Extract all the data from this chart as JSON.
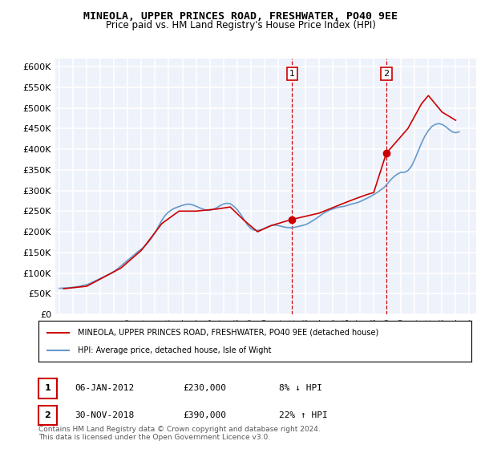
{
  "title": "MINEOLA, UPPER PRINCES ROAD, FRESHWATER, PO40 9EE",
  "subtitle": "Price paid vs. HM Land Registry's House Price Index (HPI)",
  "ylabel_ticks": [
    "£0",
    "£50K",
    "£100K",
    "£150K",
    "£200K",
    "£250K",
    "£300K",
    "£350K",
    "£400K",
    "£450K",
    "£500K",
    "£550K",
    "£600K"
  ],
  "ylim": [
    0,
    620000
  ],
  "xlim_start": 1995.0,
  "xlim_end": 2025.5,
  "background_color": "#e8eef8",
  "plot_bg": "#eef2fa",
  "grid_color": "#ffffff",
  "hpi_color": "#6699cc",
  "sale_color": "#cc0000",
  "marker1_x": 2012.03,
  "marker1_y": 230000,
  "marker2_x": 2018.92,
  "marker2_y": 390000,
  "legend_line1": "MINEOLA, UPPER PRINCES ROAD, FRESHWATER, PO40 9EE (detached house)",
  "legend_line2": "HPI: Average price, detached house, Isle of Wight",
  "annotation1_label": "1",
  "annotation1_date": "06-JAN-2012",
  "annotation1_price": "£230,000",
  "annotation1_pct": "8% ↓ HPI",
  "annotation2_label": "2",
  "annotation2_date": "30-NOV-2018",
  "annotation2_price": "£390,000",
  "annotation2_pct": "22% ↑ HPI",
  "footer": "Contains HM Land Registry data © Crown copyright and database right 2024.\nThis data is licensed under the Open Government Licence v3.0.",
  "hpi_data_x": [
    1995.0,
    1995.25,
    1995.5,
    1995.75,
    1996.0,
    1996.25,
    1996.5,
    1996.75,
    1997.0,
    1997.25,
    1997.5,
    1997.75,
    1998.0,
    1998.25,
    1998.5,
    1998.75,
    1999.0,
    1999.25,
    1999.5,
    1999.75,
    2000.0,
    2000.25,
    2000.5,
    2000.75,
    2001.0,
    2001.25,
    2001.5,
    2001.75,
    2002.0,
    2002.25,
    2002.5,
    2002.75,
    2003.0,
    2003.25,
    2003.5,
    2003.75,
    2004.0,
    2004.25,
    2004.5,
    2004.75,
    2005.0,
    2005.25,
    2005.5,
    2005.75,
    2006.0,
    2006.25,
    2006.5,
    2006.75,
    2007.0,
    2007.25,
    2007.5,
    2007.75,
    2008.0,
    2008.25,
    2008.5,
    2008.75,
    2009.0,
    2009.25,
    2009.5,
    2009.75,
    2010.0,
    2010.25,
    2010.5,
    2010.75,
    2011.0,
    2011.25,
    2011.5,
    2011.75,
    2012.0,
    2012.25,
    2012.5,
    2012.75,
    2013.0,
    2013.25,
    2013.5,
    2013.75,
    2014.0,
    2014.25,
    2014.5,
    2014.75,
    2015.0,
    2015.25,
    2015.5,
    2015.75,
    2016.0,
    2016.25,
    2016.5,
    2016.75,
    2017.0,
    2017.25,
    2017.5,
    2017.75,
    2018.0,
    2018.25,
    2018.5,
    2018.75,
    2019.0,
    2019.25,
    2019.5,
    2019.75,
    2020.0,
    2020.25,
    2020.5,
    2020.75,
    2021.0,
    2021.25,
    2021.5,
    2021.75,
    2022.0,
    2022.25,
    2022.5,
    2022.75,
    2023.0,
    2023.25,
    2023.5,
    2023.75,
    2024.0,
    2024.25
  ],
  "hpi_data_y": [
    63000,
    63500,
    64000,
    64500,
    65500,
    66500,
    68000,
    70000,
    72000,
    75000,
    79000,
    83000,
    87000,
    91000,
    95000,
    99000,
    104000,
    110000,
    117000,
    124000,
    131000,
    138000,
    145000,
    152000,
    158000,
    165000,
    174000,
    185000,
    198000,
    213000,
    228000,
    240000,
    248000,
    254000,
    258000,
    261000,
    264000,
    266000,
    267000,
    265000,
    262000,
    258000,
    255000,
    252000,
    252000,
    254000,
    258000,
    263000,
    267000,
    269000,
    268000,
    262000,
    254000,
    243000,
    230000,
    217000,
    208000,
    204000,
    203000,
    205000,
    208000,
    212000,
    215000,
    216000,
    215000,
    213000,
    211000,
    210000,
    210000,
    211000,
    213000,
    215000,
    217000,
    221000,
    226000,
    231000,
    237000,
    243000,
    248000,
    252000,
    255000,
    258000,
    260000,
    261000,
    263000,
    266000,
    268000,
    270000,
    273000,
    277000,
    281000,
    285000,
    290000,
    295000,
    301000,
    307000,
    316000,
    326000,
    334000,
    340000,
    344000,
    344000,
    348000,
    358000,
    375000,
    395000,
    415000,
    432000,
    445000,
    455000,
    460000,
    462000,
    460000,
    455000,
    448000,
    442000,
    440000,
    442000
  ],
  "sale_data_x": [
    1995.3,
    1997.0,
    1999.5,
    2001.0,
    2002.5,
    2003.75,
    2005.0,
    2006.5,
    2007.5,
    2008.5,
    2009.5,
    2010.5,
    2012.03,
    2014.0,
    2015.5,
    2016.5,
    2017.5,
    2018.0,
    2018.92,
    2020.5,
    2021.5,
    2022.0,
    2022.5,
    2023.0,
    2023.5,
    2024.0
  ],
  "sale_data_y": [
    62000,
    68000,
    112000,
    155000,
    220000,
    250000,
    250000,
    255000,
    260000,
    228000,
    200000,
    215000,
    230000,
    245000,
    265000,
    278000,
    290000,
    295000,
    390000,
    450000,
    510000,
    530000,
    510000,
    490000,
    480000,
    470000
  ]
}
